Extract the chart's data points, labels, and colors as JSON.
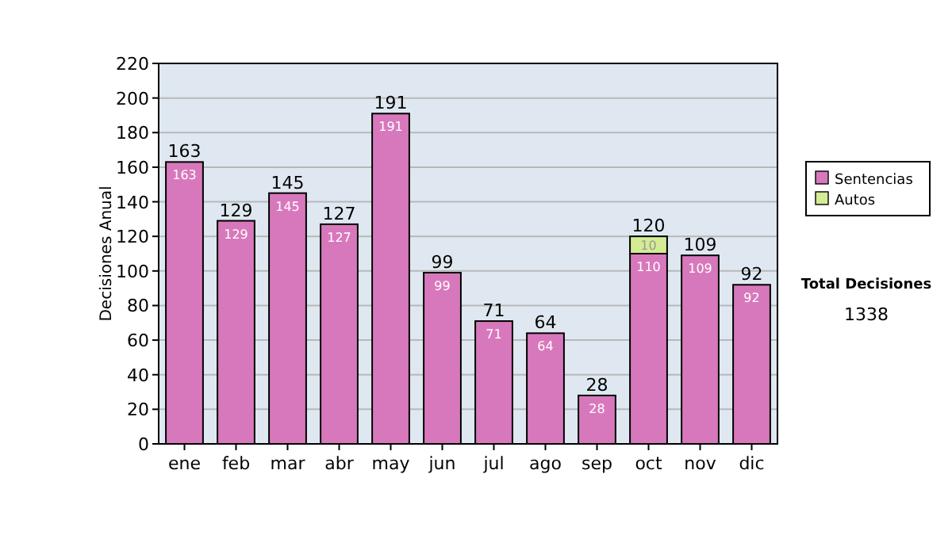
{
  "chart_data": {
    "type": "bar",
    "stacked": true,
    "ylabel": "Decisiones Anual",
    "categories": [
      "ene",
      "feb",
      "mar",
      "abr",
      "may",
      "jun",
      "jul",
      "ago",
      "sep",
      "oct",
      "nov",
      "dic"
    ],
    "series": [
      {
        "name": "Sentencias",
        "color": "#d878bc",
        "values": [
          163,
          129,
          145,
          127,
          191,
          99,
          71,
          64,
          28,
          110,
          109,
          92
        ]
      },
      {
        "name": "Autos",
        "color": "#d4ec94",
        "values": [
          null,
          null,
          null,
          null,
          null,
          null,
          null,
          null,
          null,
          10,
          null,
          null
        ]
      }
    ],
    "totals": [
      "163",
      "129",
      "145",
      "127",
      "191",
      "99",
      "71",
      "64",
      "28",
      "120",
      "109",
      "92"
    ],
    "data_labels": true,
    "ylim": [
      0,
      220
    ],
    "yticks": [
      0,
      20,
      40,
      60,
      80,
      100,
      120,
      140,
      160,
      180,
      200,
      220
    ],
    "grid": "y",
    "legend": "right",
    "annotations": [
      "Total Decisiones",
      "1338"
    ]
  }
}
